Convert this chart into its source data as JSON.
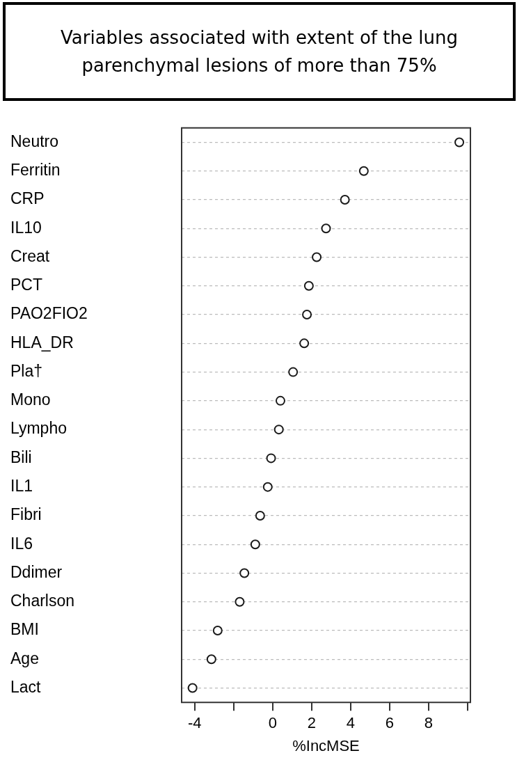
{
  "chart_data": {
    "type": "scatter",
    "title": "Variables associated with extent of the lung parenchymal lesions of more than 75%",
    "categories": [
      "Neutro",
      "Ferritin",
      "CRP",
      "IL10",
      "Creat",
      "PCT",
      "PAO2FIO2",
      "HLA_DR",
      "Pla†",
      "Mono",
      "Lympho",
      "Bili",
      "IL1",
      "Fibri",
      "IL6",
      "Ddimer",
      "Charlson",
      "BMI",
      "Age",
      "Lact"
    ],
    "values": [
      9.58,
      4.68,
      3.71,
      2.74,
      2.26,
      1.86,
      1.76,
      1.62,
      1.05,
      0.4,
      0.32,
      -0.08,
      -0.25,
      -0.64,
      -0.89,
      -1.45,
      -1.69,
      -2.82,
      -3.14,
      -4.11
    ],
    "color": "#1a1a1a",
    "orientation": "horizontal",
    "xlabel": "%IncMSE",
    "xlim": [
      -4.67,
      10.15
    ],
    "xticks": [
      -4,
      {
        "value": -2,
        "label": null
      },
      0,
      2,
      4,
      6,
      8,
      {
        "value": 10,
        "label": null
      }
    ],
    "grid": "y",
    "marker": "circle",
    "legend": false
  }
}
